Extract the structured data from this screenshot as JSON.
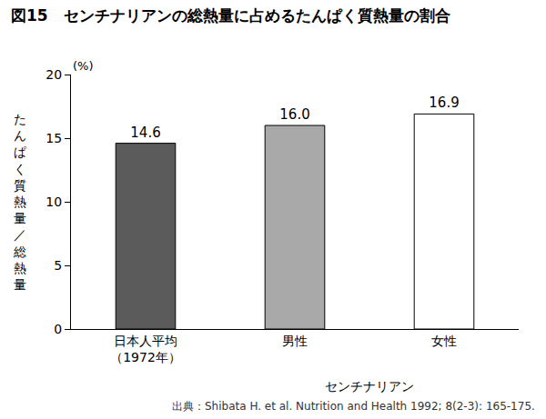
{
  "chart_data": {
    "type": "bar",
    "title": "図15　センチナリアンの総熱量に占めるたんぱく質熱量の割合",
    "y_label": "たんぱく質熱量／総熱量",
    "y_unit": "(%)",
    "categories": [
      "日本人平均（1972年）",
      "男性",
      "女性"
    ],
    "values": [
      14.6,
      16.0,
      16.9
    ],
    "value_labels": [
      "14.6",
      "16.0",
      "16.9"
    ],
    "colors": [
      "#5b5b5b",
      "#a9a9a9",
      "#ffffff"
    ],
    "group_label": {
      "text": "センチナリアン",
      "categories": [
        "男性",
        "女性"
      ]
    },
    "source": "出典：Shibata H. et al. Nutrition and Health 1992; 8(2-3): 165-175.",
    "ylim": [
      0,
      20
    ],
    "yticks": [
      0,
      5,
      10,
      15,
      20
    ],
    "data_labels": true,
    "grid": false
  }
}
